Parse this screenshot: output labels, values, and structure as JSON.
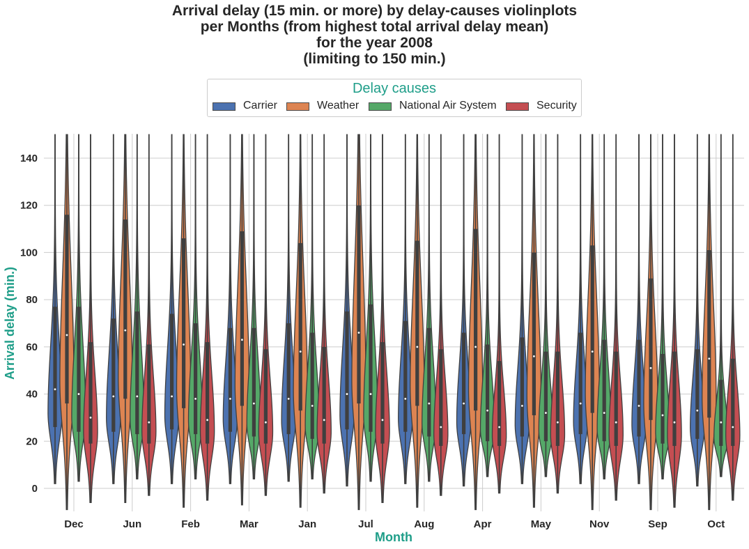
{
  "chart_data": {
    "type": "violin",
    "title_lines": [
      "Arrival delay (15 min. or more) by delay-causes violinplots",
      "per Months (from highest total arrival delay mean)",
      "for the year 2008",
      "(limiting to 150 min.)"
    ],
    "xlabel": "Month",
    "ylabel": "Arrival delay (min.)",
    "ylim": [
      -10,
      150
    ],
    "yticks": [
      0,
      20,
      40,
      60,
      80,
      100,
      120,
      140
    ],
    "grid": true,
    "legend": {
      "title": "Delay causes",
      "placement": "top-center",
      "entries": [
        "Carrier",
        "Weather",
        "National Air System",
        "Security"
      ]
    },
    "series_colors": [
      "#4c72b0",
      "#dd8452",
      "#55a868",
      "#c44e52"
    ],
    "categories": [
      "Dec",
      "Jun",
      "Feb",
      "Mar",
      "Jan",
      "Jul",
      "Aug",
      "Apr",
      "May",
      "Nov",
      "Sep",
      "Oct"
    ],
    "series": [
      {
        "name": "Carrier",
        "median": [
          42,
          39,
          39,
          38,
          38,
          40,
          38,
          36,
          35,
          36,
          35,
          33
        ],
        "q1": [
          26,
          24,
          25,
          24,
          23,
          25,
          24,
          23,
          22,
          23,
          22,
          21
        ],
        "q3": [
          77,
          72,
          74,
          68,
          70,
          75,
          71,
          66,
          64,
          66,
          63,
          59
        ],
        "min": [
          2,
          2,
          2,
          2,
          3,
          1,
          2,
          1,
          2,
          2,
          2,
          1
        ],
        "max": [
          150,
          150,
          150,
          150,
          150,
          150,
          150,
          150,
          150,
          150,
          150,
          150
        ]
      },
      {
        "name": "Weather",
        "median": [
          65,
          67,
          61,
          63,
          58,
          66,
          60,
          60,
          56,
          58,
          51,
          55
        ],
        "q1": [
          36,
          38,
          34,
          35,
          33,
          36,
          35,
          33,
          31,
          32,
          29,
          30
        ],
        "q3": [
          116,
          114,
          106,
          109,
          104,
          120,
          105,
          110,
          100,
          103,
          89,
          101
        ],
        "min": [
          -9,
          -6,
          -8,
          -7,
          -8,
          -9,
          -8,
          -9,
          -8,
          -9,
          -9,
          -9
        ],
        "max": [
          150,
          150,
          150,
          150,
          150,
          150,
          150,
          150,
          150,
          150,
          150,
          150
        ]
      },
      {
        "name": "National Air System",
        "median": [
          40,
          39,
          38,
          36,
          35,
          40,
          36,
          33,
          32,
          32,
          31,
          28
        ],
        "q1": [
          24,
          23,
          23,
          22,
          21,
          24,
          22,
          20,
          20,
          20,
          19,
          18
        ],
        "q3": [
          77,
          75,
          70,
          68,
          66,
          78,
          68,
          61,
          58,
          63,
          57,
          46
        ],
        "min": [
          3,
          4,
          4,
          4,
          4,
          3,
          3,
          5,
          5,
          4,
          4,
          5
        ],
        "max": [
          150,
          150,
          150,
          150,
          150,
          150,
          150,
          150,
          150,
          150,
          150,
          150
        ]
      },
      {
        "name": "Security",
        "median": [
          30,
          28,
          29,
          28,
          29,
          29,
          26,
          26,
          28,
          28,
          28,
          26
        ],
        "q1": [
          19,
          19,
          19,
          19,
          19,
          19,
          18,
          18,
          18,
          18,
          18,
          18
        ],
        "q3": [
          62,
          61,
          62,
          59,
          60,
          62,
          59,
          54,
          58,
          58,
          58,
          55
        ],
        "min": [
          -6,
          -3,
          -5,
          -3,
          -2,
          -6,
          -3,
          -2,
          -2,
          -5,
          -8,
          -5
        ],
        "max": [
          150,
          150,
          150,
          150,
          150,
          150,
          150,
          150,
          150,
          150,
          150,
          150
        ]
      }
    ]
  }
}
